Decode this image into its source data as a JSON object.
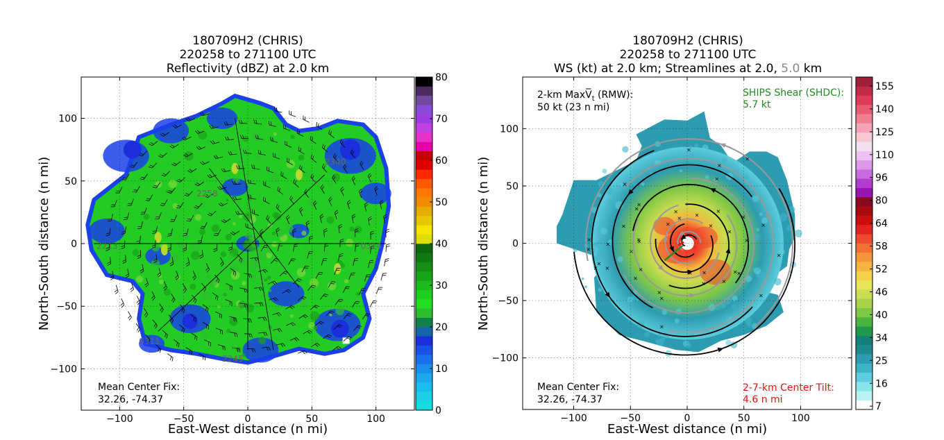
{
  "chart_data": [
    {
      "type": "heatmap",
      "title_lines": [
        "180709H2 (CHRIS)",
        "220258 to 271100 UTC",
        "Reflectivity (dBZ) at 2.0 km"
      ],
      "xlabel": "East-West distance (n mi)",
      "ylabel": "North-South distance (n mi)",
      "xlim": [
        -130,
        130
      ],
      "ylim": [
        -133,
        133
      ],
      "xticks": [
        -100,
        -50,
        0,
        50,
        100
      ],
      "yticks": [
        -100,
        -50,
        0,
        50,
        100
      ],
      "tick_labels": [
        "−100",
        "−50",
        "0",
        "50",
        "100"
      ],
      "grid": true,
      "colorbar": {
        "range": [
          0,
          80
        ],
        "tick_values": [
          0,
          10,
          20,
          30,
          40,
          50,
          60,
          70,
          80
        ],
        "tick_labels": [
          "0",
          "10",
          "20",
          "30",
          "40",
          "50",
          "60",
          "70",
          "80"
        ],
        "colors": [
          "#10dede",
          "#1ccfe9",
          "#19bdec",
          "#1ba9ec",
          "#1a8fec",
          "#1a6fec",
          "#1a50e6",
          "#1a2edb",
          "#1565a8",
          "#10804a",
          "#2ebd2e",
          "#22dd22",
          "#1ecf1e",
          "#1cba1c",
          "#18a418",
          "#148e14",
          "#107a10",
          "#0e660e",
          "#dede00",
          "#f2e600",
          "#e6c800",
          "#e6ac00",
          "#f08c00",
          "#ff7700",
          "#ff5a00",
          "#ff2a00",
          "#e00000",
          "#c40000",
          "#e600a8",
          "#e632c8",
          "#c040e0",
          "#a03ce0",
          "#8a4cd8",
          "#704a9c",
          "#4c2c60",
          "#000000"
        ]
      },
      "annotations": {
        "center_fix_label": "Mean Center Fix:",
        "center_fix_value": "32.26, -74.37",
        "flight_labels": [
          "0311",
          "2213",
          "0314",
          "2258",
          "2245",
          "2340"
        ]
      }
    },
    {
      "type": "heatmap",
      "title_lines": [
        "180709H2 (CHRIS)",
        "220258 to 271100 UTC"
      ],
      "title_line3": {
        "prefix": "WS (kt) at 2.0 km; Streamlines at 2.0, ",
        "highlight": "5.0",
        "suffix": " km"
      },
      "xlabel": "East-West distance (n mi)",
      "ylabel": "North-South distance (n mi)",
      "xlim": [
        -145,
        145
      ],
      "ylim": [
        -145,
        145
      ],
      "xticks": [
        -100,
        -50,
        0,
        50,
        100
      ],
      "yticks": [
        -100,
        -50,
        0,
        50,
        100
      ],
      "tick_labels": [
        "−100",
        "−50",
        "0",
        "50",
        "100"
      ],
      "grid": true,
      "colorbar": {
        "range": [
          7,
          160
        ],
        "tick_values": [
          7,
          16,
          25,
          34,
          40,
          46,
          52,
          58,
          64,
          80,
          96,
          110,
          125,
          140,
          155
        ],
        "tick_labels": [
          "7",
          "16",
          "25",
          "34",
          "40",
          "46",
          "52",
          "58",
          "64",
          "80",
          "96",
          "110",
          "125",
          "140",
          "155"
        ],
        "colors": [
          "#ffffff",
          "#b8f2f2",
          "#88e6ea",
          "#5ccddc",
          "#3cb4c8",
          "#2e9cb0",
          "#1d8a8e",
          "#13807a",
          "#1f9a4a",
          "#4cb43e",
          "#7fc845",
          "#a8d24a",
          "#cadc50",
          "#e8e458",
          "#f4d048",
          "#f6b43e",
          "#f6963a",
          "#f27034",
          "#ee4a2e",
          "#e42222",
          "#cc0e0e",
          "#a80a10",
          "#8a0a20",
          "#9a14b4",
          "#b23cd0",
          "#c86ae0",
          "#dc98ea",
          "#ecc0f0",
          "#f4e0f0",
          "#f8c8d2",
          "#f4a4b4",
          "#f07e90",
          "#ea5a72",
          "#de3c5a",
          "#c42a48",
          "#a0203c"
        ]
      },
      "annotations": {
        "max_vt_label_prefix": "2-km Max",
        "max_vt_label_suffix": " (RMW):",
        "max_vt_value": "50 kt (23 n mi)",
        "shear_label": "SHIPS Shear (SHDC):",
        "shear_value": "5.7 kt",
        "center_fix_label": "Mean Center Fix:",
        "center_fix_value": "32.26, -74.37",
        "tilt_label": "2-7-km Center Tilt:",
        "tilt_value": "4.6 n mi"
      }
    }
  ],
  "colors": {
    "dbz_low": "#1a40e8",
    "dbz_mid": "#22cc22",
    "ws_shear_text": "#228b22",
    "ws_tilt_text": "#ee1111",
    "streamline_2km": "#000000",
    "streamline_5km": "#999999"
  }
}
